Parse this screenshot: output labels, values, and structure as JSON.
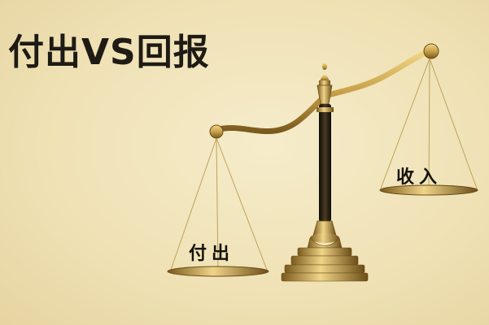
{
  "title": "付出VS回报",
  "left_pan_label": "付出",
  "right_pan_label": "收入",
  "colors": {
    "background": "#efe1b4",
    "brass": "#c9a24a",
    "brass_dark": "#7a5a1c",
    "pillar": "#1c1710",
    "text": "#1e1a14"
  }
}
